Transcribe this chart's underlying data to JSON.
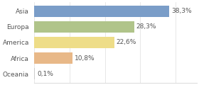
{
  "categories": [
    "Asia",
    "Europa",
    "America",
    "Africa",
    "Oceania"
  ],
  "values": [
    38.3,
    28.3,
    22.6,
    10.8,
    0.1
  ],
  "labels": [
    "38,3%",
    "28,3%",
    "22,6%",
    "10,8%",
    "0,1%"
  ],
  "bar_colors": [
    "#7a9dc8",
    "#b0c48a",
    "#eedd88",
    "#e8b888",
    "#cccccc"
  ],
  "background_color": "#ffffff",
  "xlim": [
    0,
    46
  ],
  "label_fontsize": 6.5,
  "cat_fontsize": 6.5,
  "bar_height": 0.72
}
